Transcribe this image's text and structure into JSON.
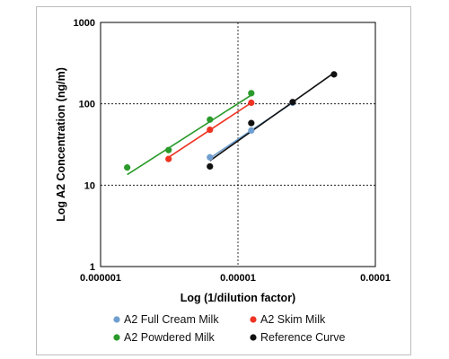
{
  "chart_data": {
    "type": "scatter",
    "xlabel": "Log (1/dilution factor)",
    "ylabel": "Log A2 Concentration (ng/m)",
    "x_scale": "log",
    "y_scale": "log",
    "xlim": [
      1e-06,
      0.0001
    ],
    "ylim": [
      1,
      1000
    ],
    "x_ticks": [
      "0.000001",
      "0.00001",
      "0.0001"
    ],
    "y_ticks": [
      "1",
      "10",
      "100",
      "1000"
    ],
    "grid": true,
    "legend_position": "bottom",
    "series": [
      {
        "name": "A2 Full Cream Milk",
        "color": "#6f9fd0",
        "x": [
          6.25e-06,
          1.25e-05,
          2.5e-05
        ],
        "y": [
          22,
          47,
          103
        ],
        "trendline": [
          [
            6.25e-06,
            21.5
          ],
          [
            2.5e-05,
            103
          ]
        ]
      },
      {
        "name": "A2 Skim Milk",
        "color": "#ee3322",
        "x": [
          3.125e-06,
          6.25e-06,
          1.25e-05
        ],
        "y": [
          21,
          48,
          103
        ],
        "trendline": [
          [
            3.125e-06,
            22
          ],
          [
            1.25e-05,
            103
          ]
        ]
      },
      {
        "name": "A2 Powdered Milk",
        "color": "#2a9a2a",
        "x": [
          1.5625e-06,
          3.125e-06,
          6.25e-06,
          1.25e-05
        ],
        "y": [
          16.5,
          27,
          64,
          135
        ],
        "trendline": [
          [
            1.5625e-06,
            13.5
          ],
          [
            1.25e-05,
            128
          ]
        ]
      },
      {
        "name": "Reference Curve",
        "color": "#111111",
        "x": [
          6.25e-06,
          1.25e-05,
          2.5e-05,
          5e-05
        ],
        "y": [
          17,
          58,
          105,
          230
        ],
        "trendline": [
          [
            6.25e-06,
            20
          ],
          [
            5e-05,
            240
          ]
        ]
      }
    ]
  }
}
